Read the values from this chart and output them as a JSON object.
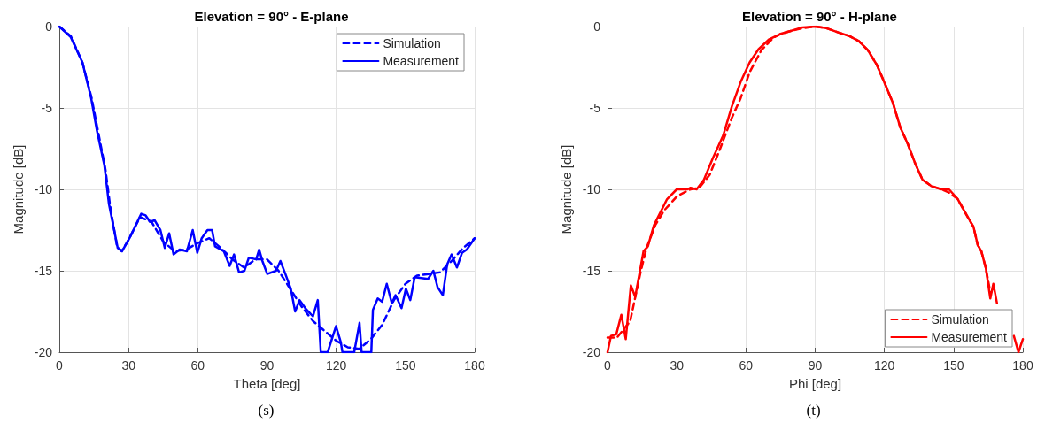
{
  "chart_data": [
    {
      "type": "line",
      "title": "Elevation = 90° - E-plane",
      "xlabel": "Theta [deg]",
      "ylabel": "Magnitude [dB]",
      "xlim": [
        0,
        180
      ],
      "xticks": [
        0,
        30,
        60,
        90,
        120,
        150,
        180
      ],
      "ylim": [
        -20,
        0
      ],
      "yticks": [
        -20,
        -15,
        -10,
        -5,
        0
      ],
      "grid": true,
      "legend": "top right",
      "marker": "none",
      "annotations": [
        "(s)"
      ],
      "series": [
        {
          "name": "Simulation",
          "color": "#0000ff",
          "line_style": "dashed",
          "x": [
            0,
            5,
            10,
            14,
            17,
            20,
            22,
            25,
            27,
            30,
            35,
            40,
            45,
            50,
            55,
            60,
            65,
            70,
            75,
            80,
            85,
            90,
            95,
            100,
            105,
            110,
            115,
            120,
            125,
            130,
            135,
            140,
            145,
            150,
            155,
            160,
            165,
            170,
            175,
            180
          ],
          "values": [
            0,
            -0.6,
            -2.2,
            -4.4,
            -6.6,
            -8.8,
            -11,
            -13.5,
            -13.8,
            -13.1,
            -11.7,
            -12,
            -13.2,
            -13.8,
            -13.7,
            -13.3,
            -13,
            -13.6,
            -14.3,
            -14.8,
            -14.3,
            -14.3,
            -15,
            -16.1,
            -17.2,
            -18.1,
            -18.7,
            -19.3,
            -19.7,
            -19.8,
            -19.2,
            -18.3,
            -16.8,
            -15.8,
            -15.3,
            -15.2,
            -15.1,
            -14.4,
            -13.6,
            -13
          ]
        },
        {
          "name": "Measurement",
          "color": "#0000ff",
          "line_style": "solid",
          "x": [
            0,
            4.9,
            10,
            13.8,
            16.3,
            19.5,
            21.5,
            25.3,
            27.2,
            30.4,
            35.5,
            37.4,
            39.3,
            41.3,
            43.8,
            45.7,
            47.6,
            49.5,
            52.1,
            55.3,
            57.8,
            59.8,
            61.7,
            64.2,
            66.2,
            67.5,
            71.3,
            73.8,
            75.7,
            77.9,
            80.2,
            82.1,
            85.3,
            86.6,
            88,
            90.1,
            93.9,
            95.8,
            97.7,
            100.3,
            102.2,
            104.1,
            106.6,
            109.9,
            112,
            113.3,
            116.3,
            119.9,
            122,
            122.7,
            127.8,
            130.1,
            131,
            135.2,
            135.9,
            138,
            139.9,
            141.9,
            144.1,
            145.7,
            148.3,
            150.2,
            152.1,
            154,
            159.8,
            162.1,
            163.9,
            166.2,
            168.1,
            170,
            172.3,
            174.5,
            176.6,
            180
          ],
          "values": [
            0,
            -0.64,
            -2.2,
            -4.4,
            -6.4,
            -8.5,
            -10.9,
            -13.6,
            -13.8,
            -13,
            -11.5,
            -11.6,
            -12,
            -11.9,
            -12.5,
            -13.6,
            -12.7,
            -14,
            -13.7,
            -13.8,
            -12.5,
            -13.9,
            -13,
            -12.5,
            -12.5,
            -13.5,
            -13.8,
            -14.7,
            -14,
            -15.1,
            -15,
            -14.2,
            -14.3,
            -13.7,
            -14.4,
            -15.2,
            -15,
            -14.4,
            -15.1,
            -16.1,
            -17.5,
            -16.8,
            -17.3,
            -17.8,
            -16.8,
            -20,
            -20,
            -18.4,
            -19.4,
            -20,
            -20,
            -18.2,
            -20,
            -20,
            -17.4,
            -16.7,
            -16.9,
            -15.8,
            -17,
            -16.5,
            -17.3,
            -16.1,
            -16.8,
            -15.4,
            -15.5,
            -15,
            -16,
            -16.5,
            -14.6,
            -14,
            -14.8,
            -13.9,
            -13.7,
            -13
          ]
        }
      ]
    },
    {
      "type": "line",
      "title": "Elevation = 90° - H-plane",
      "xlabel": "Phi [deg]",
      "ylabel": "Magnitude [dB]",
      "xlim": [
        0,
        180
      ],
      "xticks": [
        0,
        30,
        60,
        90,
        120,
        150,
        180
      ],
      "ylim": [
        -20,
        0
      ],
      "yticks": [
        -20,
        -15,
        -10,
        -5,
        0
      ],
      "grid": true,
      "legend": "bottom right",
      "marker": "none",
      "annotations": [
        "(t)"
      ],
      "series": [
        {
          "name": "Simulation",
          "color": "#ff0000",
          "line_style": "dashed",
          "x": [
            0,
            4.1,
            9.8,
            14.3,
            16.9,
            20.7,
            24.5,
            30.3,
            36,
            39.8,
            44.3,
            48.8,
            53.9,
            57.7,
            61.6,
            66.7,
            71.8,
            75,
            79.4,
            84.5,
            90,
            94.9,
            100,
            105.1,
            109,
            112.8,
            116.7,
            120.5,
            123.7,
            126.9,
            130.1,
            133.3,
            136.5,
            140.3,
            144.8,
            148,
            151.8,
            155.7,
            158.6,
            160.4,
            162,
            163.9,
            166
          ],
          "values": [
            -19.1,
            -19.1,
            -18.1,
            -15.1,
            -13.6,
            -12.2,
            -11.3,
            -10.4,
            -10,
            -9.9,
            -9.1,
            -7.5,
            -5.6,
            -4.4,
            -2.8,
            -1.45,
            -0.7,
            -0.45,
            -0.27,
            -0.1,
            0,
            -0.1,
            -0.36,
            -0.6,
            -0.9,
            -1.45,
            -2.35,
            -3.6,
            -4.7,
            -6.2,
            -7.2,
            -8.4,
            -9.4,
            -9.8,
            -10,
            -10.2,
            -10.6,
            -11.6,
            -12.3,
            -13.4,
            -13.8,
            -14.8,
            -16.4
          ]
        },
        {
          "name": "Measurement",
          "color": "#ff0000",
          "line_style": "solid",
          "x": [
            0,
            1.5,
            3.8,
            6,
            7.9,
            10.1,
            12,
            15.6,
            17.5,
            20.1,
            22.6,
            25.8,
            30,
            34.7,
            36,
            38.6,
            41.8,
            45.6,
            50.1,
            53.9,
            57.7,
            61.6,
            65.4,
            69.9,
            75,
            79.4,
            84.5,
            90,
            94.9,
            100,
            105.1,
            109,
            112.8,
            116.7,
            120.5,
            123.7,
            126.9,
            130.1,
            133.3,
            136.5,
            140.3,
            144.8,
            148,
            151.8,
            155.7,
            158.6,
            160.4,
            162,
            163.9,
            165.9,
            167.2,
            168.8,
            172,
            176.1,
            178.1,
            180
          ],
          "values": [
            -20,
            -19,
            -18.9,
            -17.7,
            -19.2,
            -15.9,
            -16.6,
            -13.8,
            -13.5,
            -12.2,
            -11.5,
            -10.6,
            -10,
            -10,
            -9.9,
            -10,
            -9.4,
            -8.1,
            -6.7,
            -4.9,
            -3.4,
            -2.2,
            -1.4,
            -0.8,
            -0.45,
            -0.27,
            -0.05,
            0,
            -0.1,
            -0.36,
            -0.6,
            -0.9,
            -1.45,
            -2.35,
            -3.6,
            -4.7,
            -6.2,
            -7.2,
            -8.4,
            -9.4,
            -9.8,
            -10,
            -10,
            -10.6,
            -11.6,
            -12.3,
            -13.4,
            -13.8,
            -14.8,
            -16.7,
            -15.8,
            -17,
            null,
            -19,
            -20,
            -19.2
          ]
        }
      ]
    }
  ]
}
